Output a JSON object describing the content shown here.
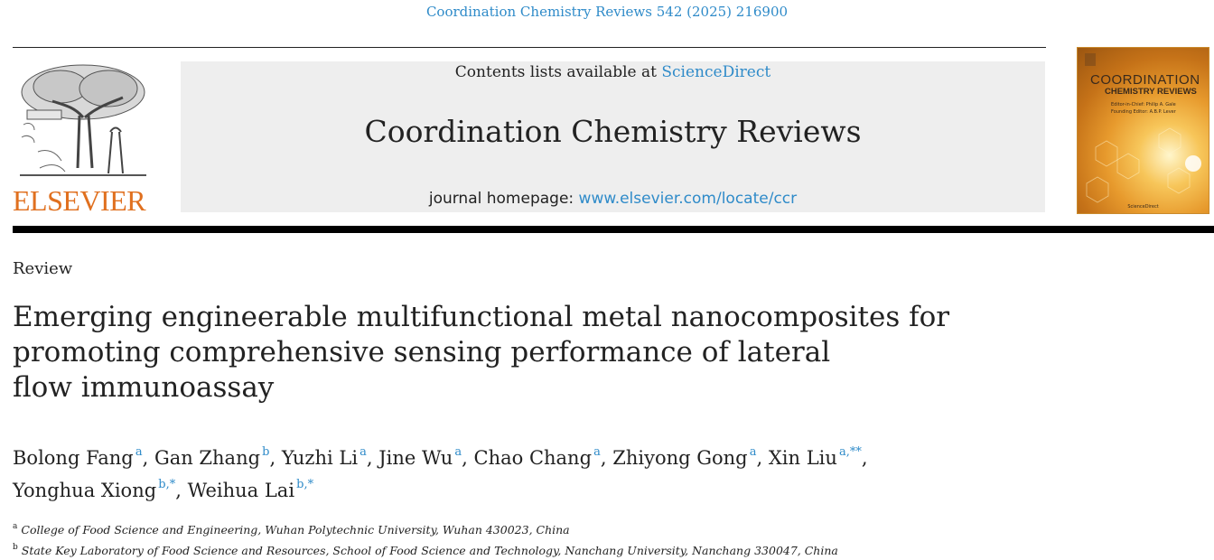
{
  "header": {
    "citation": "Coordination Chemistry Reviews 542 (2025) 216900"
  },
  "publisher": {
    "name": "ELSEVIER"
  },
  "banner": {
    "contents_prefix": "Contents lists available at ",
    "contents_link": "ScienceDirect",
    "journal_name": "Coordination Chemistry Reviews",
    "homepage_prefix": "journal homepage: ",
    "homepage_link": "www.elsevier.com/locate/ccr"
  },
  "cover": {
    "title_line1": "COORDINATION",
    "title_line2": "CHEMISTRY REVIEWS",
    "editor_line1": "Editor-in-Chief: Philip A. Gale",
    "editor_line2": "Founding Editor: A.B.P. Lever",
    "footer": "ScienceDirect"
  },
  "article": {
    "type": "Review",
    "title_lines": [
      "Emerging engineerable multifunctional metal nanocomposites for",
      "promoting comprehensive sensing performance of lateral",
      "flow immunoassay"
    ]
  },
  "authors_lines": [
    [
      {
        "name": "Bolong Fang",
        "sup": "a",
        "sep": ", "
      },
      {
        "name": "Gan Zhang",
        "sup": "b",
        "sep": ", "
      },
      {
        "name": "Yuzhi Li",
        "sup": "a",
        "sep": ", "
      },
      {
        "name": "Jine Wu",
        "sup": "a",
        "sep": ", "
      },
      {
        "name": "Chao Chang",
        "sup": "a",
        "sep": ", "
      },
      {
        "name": "Zhiyong Gong",
        "sup": "a",
        "sep": ", "
      },
      {
        "name": "Xin Liu",
        "sup": "a,**",
        "sep": ","
      }
    ],
    [
      {
        "name": "Yonghua Xiong",
        "sup": "b,*",
        "sep": ", "
      },
      {
        "name": "Weihua Lai",
        "sup": "b,*",
        "sep": ""
      }
    ]
  ],
  "affiliations": [
    {
      "label": "a",
      "text": "College of Food Science and Engineering, Wuhan Polytechnic University, Wuhan 430023, China"
    },
    {
      "label": "b",
      "text": "State Key Laboratory of Food Science and Resources, School of Food Science and Technology, Nanchang University, Nanchang 330047, China"
    }
  ]
}
